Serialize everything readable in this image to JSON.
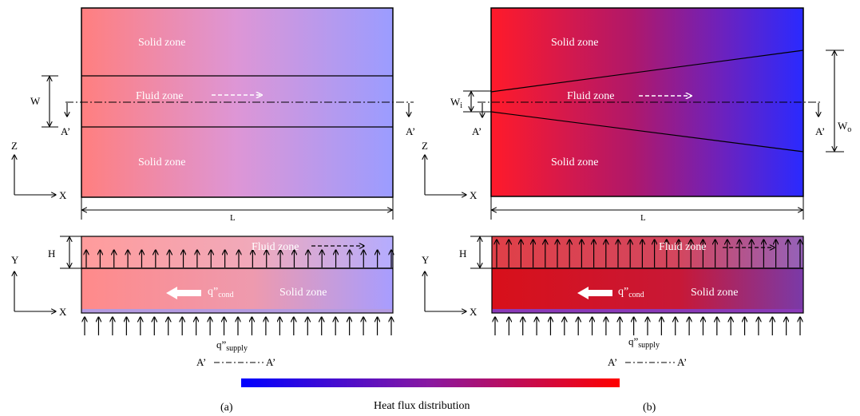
{
  "panel_a": {
    "top": {
      "solid_top": "Solid zone",
      "fluid": "Fluid zone",
      "solid_bottom": "Solid zone",
      "width_symbol": "W",
      "section_left": "A’",
      "section_right": "A’",
      "length_symbol": "L",
      "axis_vertical": "Z",
      "axis_horizontal": "X"
    },
    "bottom": {
      "fluid": "Fluid zone",
      "solid": "Solid zone",
      "height_symbol": "H",
      "cond_q": "q”",
      "cond_sub": "cond",
      "supply_q": "q”",
      "supply_sub": "supply",
      "axis_vertical": "Y",
      "axis_horizontal": "X",
      "legend_left": "A’",
      "legend_right": "A’"
    },
    "caption": "(a)"
  },
  "panel_b": {
    "top": {
      "solid_top": "Solid zone",
      "fluid": "Fluid zone",
      "solid_bottom": "Solid zone",
      "inlet_symbol": "W",
      "inlet_sub": "i",
      "outlet_symbol": "W",
      "outlet_sub": "o",
      "section_left": "A’",
      "section_right": "A’",
      "length_symbol": "L",
      "axis_vertical": "Z",
      "axis_horizontal": "X"
    },
    "bottom": {
      "fluid": "Fluid zone",
      "solid": "Solid zone",
      "height_symbol": "H",
      "cond_q": "q”",
      "cond_sub": "cond",
      "supply_q": "q”",
      "supply_sub": "supply",
      "axis_vertical": "Y",
      "axis_horizontal": "X",
      "legend_left": "A’",
      "legend_right": "A’"
    },
    "caption": "(b)"
  },
  "colorbar": {
    "label": "Heat flux distribution",
    "low_color": "#0000ff",
    "high_color": "#ff0000"
  },
  "colors": {
    "a_left": "#ff7f7f",
    "a_right": "#9b9cff",
    "b_left": "#ff1a2a",
    "b_mid": "#9a1a8a",
    "b_right": "#2a2aff"
  }
}
